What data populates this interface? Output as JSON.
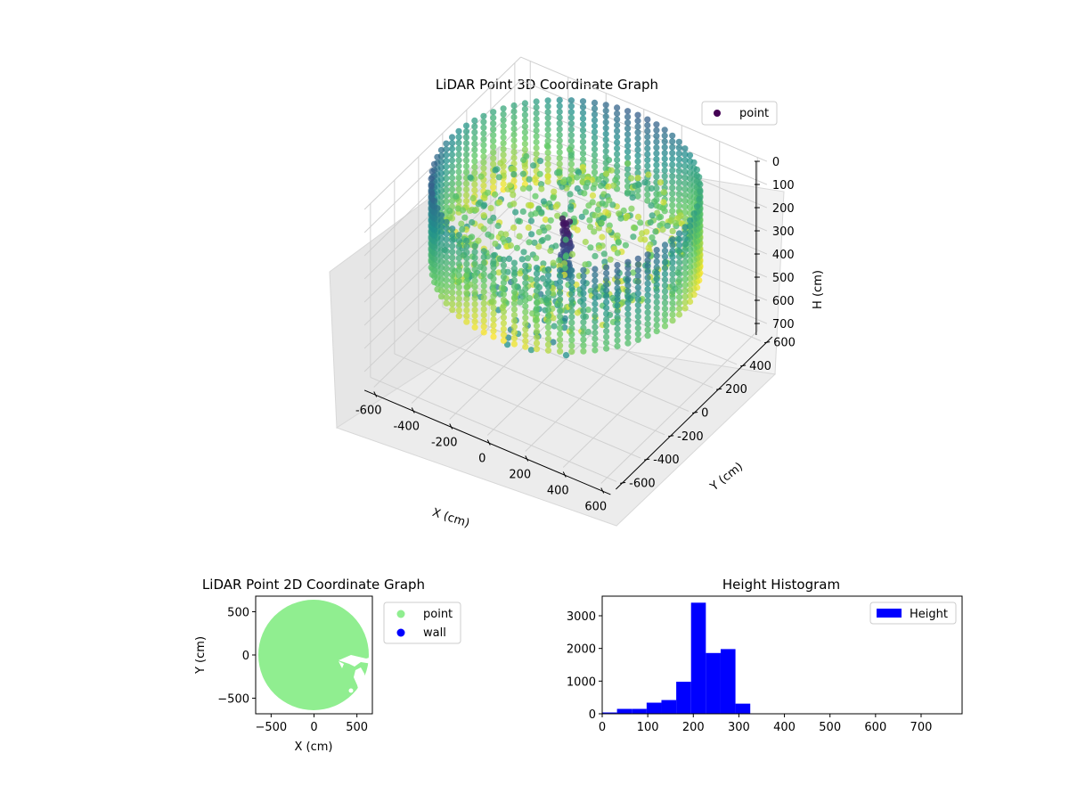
{
  "chart_data": [
    {
      "type": "scatter3d",
      "title": "LiDAR Point 3D Coordinate Graph",
      "xlabel": "X (cm)",
      "ylabel": "Y (cm)",
      "zlabel": "H (cm)",
      "xlim": [
        -650,
        650
      ],
      "ylim": [
        -650,
        650
      ],
      "zlim": [
        0,
        750
      ],
      "z_inverted": true,
      "xticks": [
        "-600",
        "-400",
        "-200",
        "0",
        "200",
        "400",
        "600"
      ],
      "yticks": [
        "-600",
        "-400",
        "-200",
        "0",
        "200",
        "400",
        "600"
      ],
      "zticks": [
        "0",
        "100",
        "200",
        "300",
        "400",
        "500",
        "600",
        "700"
      ],
      "legend": {
        "placement": "top-right",
        "entries": [
          "point"
        ]
      },
      "series": [
        {
          "name": "point",
          "colormap": "viridis",
          "wall_radius": 600,
          "wall_height_range": [
            0,
            350
          ],
          "center_column": {
            "x": 0,
            "y": 0,
            "height_range": [
              0,
              250
            ]
          }
        }
      ],
      "grid": true
    },
    {
      "type": "scatter",
      "title": "LiDAR Point 2D Coordinate Graph",
      "xlabel": "X (cm)",
      "ylabel": "Y (cm)",
      "xlim": [
        -680,
        680
      ],
      "ylim": [
        -680,
        680
      ],
      "xticks": [
        "-500",
        "0",
        "500"
      ],
      "yticks": [
        "-500",
        "0",
        "500"
      ],
      "legend": {
        "placement": "outside-right",
        "entries": [
          "point",
          "wall"
        ]
      },
      "series": [
        {
          "name": "point",
          "color": "#90ee90",
          "shape": "disk",
          "radius": 640
        },
        {
          "name": "wall",
          "color": "#0000ff"
        }
      ],
      "grid": false
    },
    {
      "type": "bar",
      "title": "Height Histogram",
      "xlabel": "",
      "ylabel": "",
      "xlim": [
        0,
        790
      ],
      "ylim": [
        0,
        3600
      ],
      "xticks": [
        "0",
        "100",
        "200",
        "300",
        "400",
        "500",
        "600",
        "700"
      ],
      "yticks": [
        "0",
        "1000",
        "2000",
        "3000"
      ],
      "legend": {
        "placement": "upper-right",
        "entries": [
          "Height"
        ]
      },
      "bin_width": 32.5,
      "bins": [
        {
          "x0": 0,
          "count": 40
        },
        {
          "x0": 32.5,
          "count": 150
        },
        {
          "x0": 65,
          "count": 150
        },
        {
          "x0": 97.5,
          "count": 340
        },
        {
          "x0": 130,
          "count": 420
        },
        {
          "x0": 162.5,
          "count": 980
        },
        {
          "x0": 195,
          "count": 3400
        },
        {
          "x0": 227.5,
          "count": 1860
        },
        {
          "x0": 260,
          "count": 1980
        },
        {
          "x0": 292.5,
          "count": 310
        }
      ],
      "series": [
        {
          "name": "Height",
          "color": "#0000ff"
        }
      ],
      "grid": false
    }
  ]
}
